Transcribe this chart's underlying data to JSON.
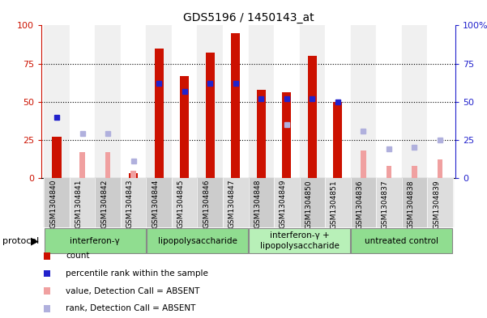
{
  "title": "GDS5196 / 1450143_at",
  "samples": [
    "GSM1304840",
    "GSM1304841",
    "GSM1304842",
    "GSM1304843",
    "GSM1304844",
    "GSM1304845",
    "GSM1304846",
    "GSM1304847",
    "GSM1304848",
    "GSM1304849",
    "GSM1304850",
    "GSM1304851",
    "GSM1304836",
    "GSM1304837",
    "GSM1304838",
    "GSM1304839"
  ],
  "red_bars": [
    27,
    0,
    0,
    3,
    85,
    67,
    82,
    95,
    58,
    56,
    80,
    50,
    0,
    0,
    0,
    0
  ],
  "blue_squares": [
    40,
    null,
    null,
    null,
    62,
    57,
    62,
    62,
    52,
    52,
    52,
    50,
    null,
    null,
    null,
    null
  ],
  "pink_bars": [
    null,
    17,
    17,
    5,
    null,
    null,
    null,
    null,
    null,
    null,
    null,
    null,
    18,
    8,
    8,
    12
  ],
  "lightblue_squares": [
    null,
    29,
    29,
    11,
    null,
    null,
    null,
    null,
    null,
    35,
    null,
    null,
    31,
    19,
    20,
    25
  ],
  "groups": [
    {
      "label": "interferon-γ",
      "start": 0,
      "end": 4,
      "color": "#90dd90"
    },
    {
      "label": "lipopolysaccharide",
      "start": 4,
      "end": 8,
      "color": "#90dd90"
    },
    {
      "label": "interferon-γ +\nlipopolysaccharide",
      "start": 8,
      "end": 12,
      "color": "#b8f0b8"
    },
    {
      "label": "untreated control",
      "start": 12,
      "end": 16,
      "color": "#90dd90"
    }
  ],
  "ylim": [
    0,
    100
  ],
  "red_color": "#cc1100",
  "blue_color": "#2222cc",
  "pink_color": "#f0a0a0",
  "lightblue_color": "#b0b0dd",
  "plot_bg": "#ffffff",
  "fig_bg": "#ffffff",
  "tick_bg_even": "#cccccc",
  "tick_bg_odd": "#dddddd",
  "legend_items": [
    {
      "label": "count",
      "color": "#cc1100"
    },
    {
      "label": "percentile rank within the sample",
      "color": "#2222cc"
    },
    {
      "label": "value, Detection Call = ABSENT",
      "color": "#f0a0a0"
    },
    {
      "label": "rank, Detection Call = ABSENT",
      "color": "#b0b0dd"
    }
  ]
}
